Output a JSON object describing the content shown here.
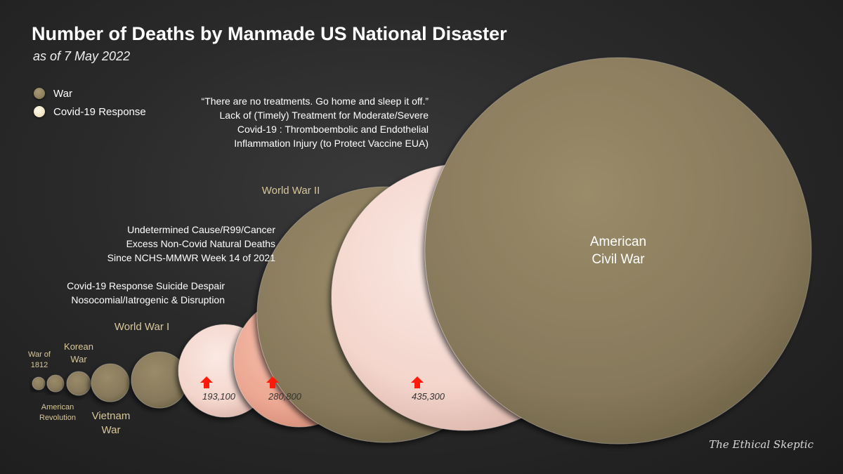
{
  "title": "Number of Deaths by Manmade US National Disaster",
  "subtitle": "as of 7 May 2022",
  "legend": [
    {
      "label": "War",
      "color": "#8b7d5c"
    },
    {
      "label": "Covid-19 Response",
      "color": "#efe3c2"
    }
  ],
  "colors": {
    "war": "#8b7d5c",
    "covid_light": "#f4d6ce",
    "covid_salmon": "#eeac98",
    "label_war": "#d9c79a",
    "label_white": "#ffffff",
    "arrow": "#ff1a0a"
  },
  "watermark": "The Ethical Skeptic",
  "chart_data": {
    "type": "bubble",
    "title": "Number of Deaths by Manmade US National Disaster",
    "subtitle": "as of 7 May 2022",
    "series": [
      {
        "name": "War"
      },
      {
        "name": "Covid-19 Response"
      }
    ],
    "bubbles": [
      {
        "id": "war-1812",
        "series": "War",
        "label_lines": [
          "War of",
          "1812"
        ],
        "value_label": ""
      },
      {
        "id": "american-revolution",
        "series": "War",
        "label_lines": [
          "American",
          "Revolution"
        ],
        "value_label": ""
      },
      {
        "id": "korean-war",
        "series": "War",
        "label_lines": [
          "Korean",
          "War"
        ],
        "value_label": ""
      },
      {
        "id": "vietnam-war",
        "series": "War",
        "label_lines": [
          "Vietnam",
          "War"
        ],
        "value_label": ""
      },
      {
        "id": "world-war-1",
        "series": "War",
        "label_lines": [
          "World War I"
        ],
        "value_label": ""
      },
      {
        "id": "suicide-despair",
        "series": "Covid-19 Response",
        "label_lines": [
          "Covid-19 Response Suicide Despair",
          "Nosocomial/Iatrogenic & Disruption"
        ],
        "value": 193100,
        "value_label": "193,100"
      },
      {
        "id": "excess-non-covid",
        "series": "Covid-19 Response",
        "label_lines": [
          "Undetermined Cause/R99/Cancer",
          "Excess Non-Covid Natural Deaths",
          "Since NCHS-MMWR Week 14 of 2021"
        ],
        "value": 280800,
        "value_label": "280,800"
      },
      {
        "id": "world-war-2",
        "series": "War",
        "label_lines": [
          "World War II"
        ],
        "value_label": ""
      },
      {
        "id": "lack-of-treatment",
        "series": "Covid-19 Response",
        "label_lines": [
          "“There are no treatments. Go home and sleep it off.”",
          "Lack of (Timely) Treatment for Moderate/Severe",
          "Covid-19 : Thromboembolic and Endothelial",
          "Inflammation Injury (to Protect Vaccine EUA)"
        ],
        "value": 435300,
        "value_label": "435,300"
      },
      {
        "id": "american-civil-war",
        "series": "War",
        "label_lines": [
          "American",
          "Civil War"
        ],
        "value_label": ""
      }
    ]
  }
}
